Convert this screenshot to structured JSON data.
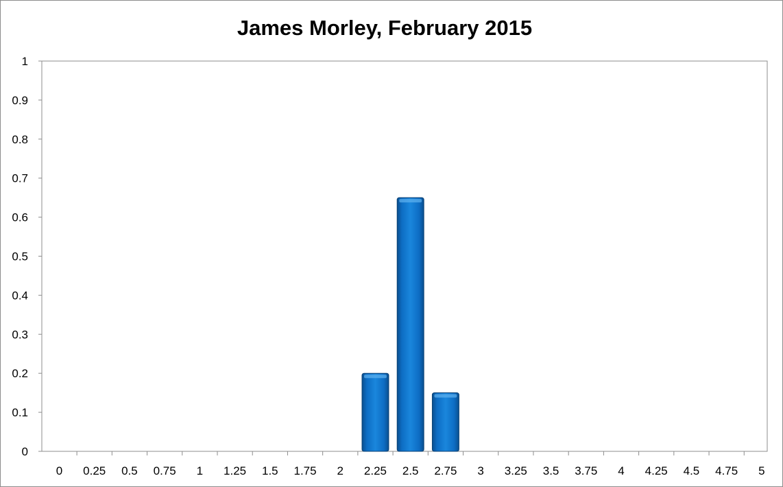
{
  "chart_data": {
    "type": "bar",
    "title": "James Morley, February 2015",
    "xlabel": "",
    "ylabel": "",
    "categories": [
      "0",
      "0.25",
      "0.5",
      "0.75",
      "1",
      "1.25",
      "1.5",
      "1.75",
      "2",
      "2.25",
      "2.5",
      "2.75",
      "3",
      "3.25",
      "3.5",
      "3.75",
      "4",
      "4.25",
      "4.5",
      "4.75",
      "5"
    ],
    "values": [
      0,
      0,
      0,
      0,
      0,
      0,
      0,
      0,
      0,
      0.2,
      0.65,
      0.15,
      0,
      0,
      0,
      0,
      0,
      0,
      0,
      0,
      0
    ],
    "ylim": [
      0,
      1
    ],
    "yticks": [
      "0",
      "0.1",
      "0.2",
      "0.3",
      "0.4",
      "0.5",
      "0.6",
      "0.7",
      "0.8",
      "0.9",
      "1"
    ],
    "grid": false,
    "legend": "none",
    "bar_color": "#0070C0"
  }
}
